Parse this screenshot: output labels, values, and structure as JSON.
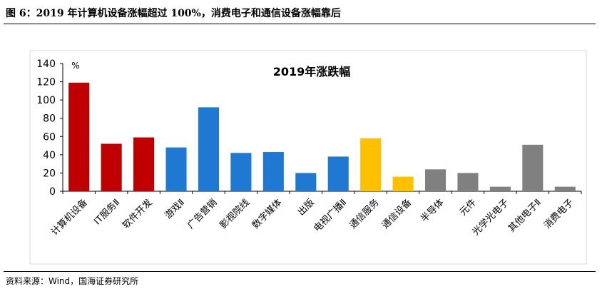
{
  "figure_title": "图 6：2019 年计算机设备涨幅超过 100%，消费电子和通信设备涨幅靠后",
  "source": "资料来源：Wind，国海证券研究所",
  "chart_data": {
    "type": "bar",
    "title": "2019年涨跌幅",
    "ylabel": "%",
    "ylim": [
      0,
      140
    ],
    "yticks": [
      0,
      20,
      40,
      60,
      80,
      100,
      120,
      140
    ],
    "grid": false,
    "categories": [
      "计算机设备",
      "IT服务Ⅱ",
      "软件开发",
      "游戏Ⅱ",
      "广告营销",
      "影视院线",
      "数字媒体",
      "出版",
      "电视广播Ⅱ",
      "通信服务",
      "通信设备",
      "半导体",
      "元件",
      "光学光电子",
      "其他电子Ⅱ",
      "消费电子"
    ],
    "values": [
      119,
      52,
      59,
      48,
      92,
      42,
      43,
      20,
      38,
      58,
      16,
      24,
      20,
      5,
      51,
      5
    ],
    "colors": [
      "#c00000",
      "#c00000",
      "#c00000",
      "#1f78d1",
      "#1f78d1",
      "#1f78d1",
      "#1f78d1",
      "#1f78d1",
      "#1f78d1",
      "#ffc000",
      "#ffc000",
      "#808080",
      "#808080",
      "#808080",
      "#808080",
      "#808080"
    ]
  }
}
